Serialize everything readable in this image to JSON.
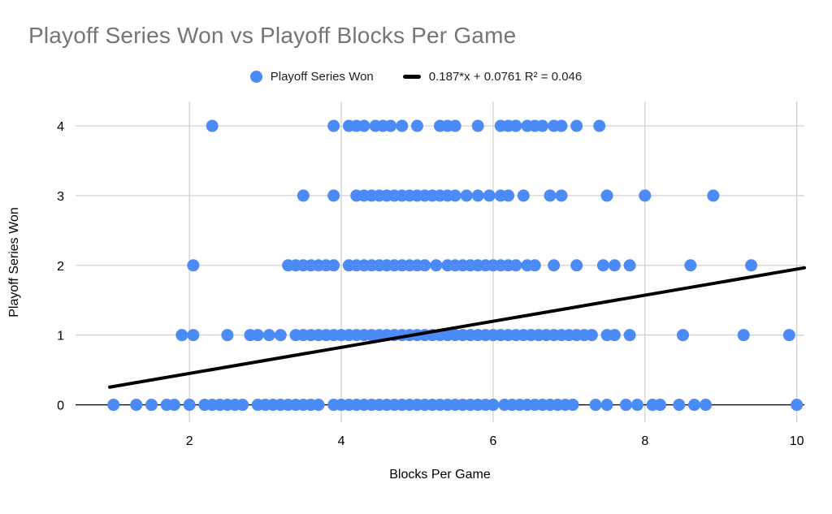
{
  "title": "Playoff Series Won vs Playoff Blocks Per Game",
  "legend": {
    "series_label": "Playoff Series Won",
    "trend_label": "0.187*x + 0.0761 R² = 0.046"
  },
  "colors": {
    "point": "#4c8bf5",
    "trend": "#000000",
    "title": "#757575",
    "grid": "#cccccc",
    "axis": "#000000"
  },
  "chart_data": {
    "type": "scatter",
    "title": "Playoff Series Won vs Playoff Blocks Per Game",
    "xlabel": "Blocks Per Game",
    "ylabel": "Playoff Series Won",
    "xlim": [
      0.5,
      10.1
    ],
    "ylim": [
      -0.25,
      4.35
    ],
    "x_ticks": [
      2,
      4,
      6,
      8,
      10
    ],
    "y_ticks": [
      0,
      1,
      2,
      3,
      4
    ],
    "grid": true,
    "legend_position": "top-center",
    "point_radius": 7.5,
    "series": [
      {
        "name": "Playoff Series Won",
        "points_by_y": {
          "0": [
            1.0,
            1.3,
            1.5,
            1.7,
            1.8,
            2.0,
            2.2,
            2.3,
            2.4,
            2.5,
            2.6,
            2.7,
            2.9,
            3.0,
            3.1,
            3.2,
            3.3,
            3.4,
            3.5,
            3.6,
            3.7,
            3.9,
            4.0,
            4.1,
            4.2,
            4.3,
            4.4,
            4.5,
            4.6,
            4.7,
            4.8,
            4.9,
            5.0,
            5.1,
            5.2,
            5.3,
            5.4,
            5.5,
            5.6,
            5.7,
            5.8,
            5.9,
            6.0,
            6.15,
            6.25,
            6.35,
            6.45,
            6.55,
            6.65,
            6.75,
            6.85,
            6.95,
            7.05,
            7.35,
            7.5,
            7.75,
            7.9,
            8.1,
            8.2,
            8.45,
            8.65,
            8.8,
            10.0
          ],
          "1": [
            1.9,
            2.05,
            2.5,
            2.8,
            2.9,
            3.05,
            3.2,
            3.4,
            3.5,
            3.6,
            3.7,
            3.8,
            3.9,
            4.0,
            4.1,
            4.2,
            4.3,
            4.4,
            4.5,
            4.6,
            4.7,
            4.8,
            4.9,
            5.0,
            5.1,
            5.2,
            5.3,
            5.4,
            5.5,
            5.6,
            5.7,
            5.8,
            5.9,
            6.0,
            6.1,
            6.2,
            6.3,
            6.4,
            6.5,
            6.6,
            6.7,
            6.8,
            6.9,
            7.0,
            7.1,
            7.2,
            7.3,
            7.5,
            7.6,
            7.8,
            8.5,
            9.3,
            9.9
          ],
          "2": [
            2.05,
            3.3,
            3.4,
            3.5,
            3.6,
            3.7,
            3.8,
            3.9,
            4.1,
            4.2,
            4.3,
            4.4,
            4.5,
            4.6,
            4.7,
            4.8,
            4.9,
            5.0,
            5.1,
            5.25,
            5.4,
            5.5,
            5.6,
            5.7,
            5.8,
            5.9,
            6.0,
            6.1,
            6.2,
            6.3,
            6.45,
            6.55,
            6.8,
            7.1,
            7.45,
            7.6,
            7.8,
            8.6,
            9.4
          ],
          "3": [
            3.5,
            3.9,
            4.2,
            4.3,
            4.4,
            4.5,
            4.6,
            4.7,
            4.8,
            4.9,
            5.0,
            5.1,
            5.2,
            5.3,
            5.4,
            5.5,
            5.65,
            5.8,
            5.95,
            6.1,
            6.2,
            6.4,
            6.75,
            6.9,
            7.5,
            8.0,
            8.9
          ],
          "4": [
            2.3,
            3.9,
            4.1,
            4.2,
            4.3,
            4.45,
            4.55,
            4.65,
            4.8,
            5.0,
            5.3,
            5.4,
            5.5,
            5.8,
            6.1,
            6.2,
            6.3,
            6.45,
            6.55,
            6.65,
            6.8,
            6.9,
            7.1,
            7.4
          ]
        }
      }
    ],
    "trendline": {
      "label": "0.187*x + 0.0761 R² = 0.046",
      "slope": 0.187,
      "intercept": 0.0761,
      "r2": 0.046,
      "x_range": [
        0.95,
        10.1
      ]
    }
  }
}
